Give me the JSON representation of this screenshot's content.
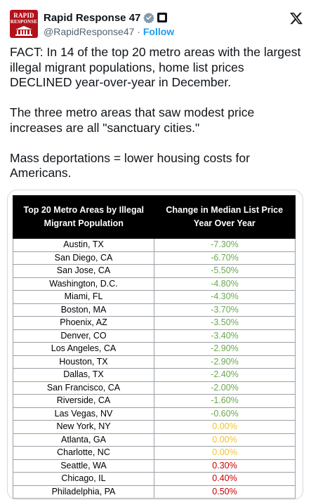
{
  "post": {
    "author": {
      "display_name": "Rapid Response 47",
      "handle": "@RapidResponse47",
      "separator": "·",
      "follow_label": "Follow",
      "avatar_text_line1": "RAPID",
      "avatar_text_line2": "RESPONSE",
      "icons": {
        "verified": "verified-badge-icon",
        "affiliation": "government-affiliation-badge-icon",
        "platform": "x-logo-icon"
      },
      "colors": {
        "avatar_bg": "#b3121b",
        "verified": "#829aab",
        "link": "#1d9bf0"
      }
    },
    "text": {
      "paragraph1": "FACT: In 14 of the top 20 metro areas with the largest illegal migrant populations, home list prices DECLINED year-over-year in December.",
      "paragraph2": "The three metro areas that saw modest price increases are all \"sanctuary cities.\"",
      "paragraph3": "Mass deportations = lower housing costs for Americans."
    }
  },
  "chart_data": {
    "type": "table",
    "columns": [
      "Top 20 Metro Areas by Illegal Migrant Population",
      "Change in Median List Price Year Over Year"
    ],
    "rows": [
      {
        "metro": "Austin, TX",
        "change": "-7.30%",
        "value": -7.3
      },
      {
        "metro": "San Diego, CA",
        "change": "-6.70%",
        "value": -6.7
      },
      {
        "metro": "San Jose, CA",
        "change": "-5.50%",
        "value": -5.5
      },
      {
        "metro": "Washington, D.C.",
        "change": "-4.80%",
        "value": -4.8
      },
      {
        "metro": "Miami, FL",
        "change": "-4.30%",
        "value": -4.3
      },
      {
        "metro": "Boston, MA",
        "change": "-3.70%",
        "value": -3.7
      },
      {
        "metro": "Phoenix, AZ",
        "change": "-3.50%",
        "value": -3.5
      },
      {
        "metro": "Denver, CO",
        "change": "-3.40%",
        "value": -3.4
      },
      {
        "metro": "Los Angeles, CA",
        "change": "-2.90%",
        "value": -2.9
      },
      {
        "metro": "Houston, TX",
        "change": "-2.90%",
        "value": -2.9
      },
      {
        "metro": "Dallas, TX",
        "change": "-2.40%",
        "value": -2.4
      },
      {
        "metro": "San Francisco, CA",
        "change": "-2.00%",
        "value": -2.0
      },
      {
        "metro": "Riverside, CA",
        "change": "-1.60%",
        "value": -1.6
      },
      {
        "metro": "Las Vegas, NV",
        "change": "-0.60%",
        "value": -0.6
      },
      {
        "metro": "New York, NY",
        "change": "0.00%",
        "value": 0.0
      },
      {
        "metro": "Atlanta, GA",
        "change": "0.00%",
        "value": 0.0
      },
      {
        "metro": "Charlotte, NC",
        "change": "0.00%",
        "value": 0.0
      },
      {
        "metro": "Seattle, WA",
        "change": "0.30%",
        "value": 0.3
      },
      {
        "metro": "Chicago, IL",
        "change": "0.40%",
        "value": 0.4
      },
      {
        "metro": "Philadelphia, PA",
        "change": "0.50%",
        "value": 0.5
      }
    ],
    "colors": {
      "negative": "#6aa84f",
      "zero": "#f1c232",
      "positive": "#cc0000"
    }
  }
}
